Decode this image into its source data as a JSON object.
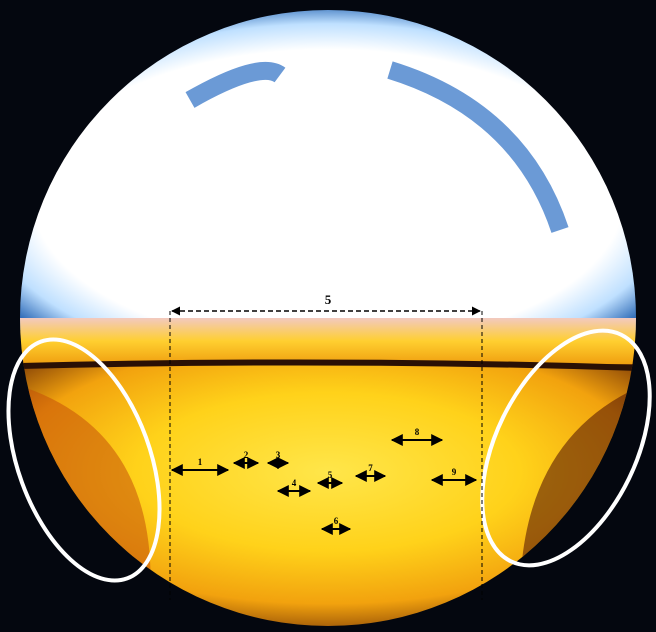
{
  "image": {
    "annotations": {
      "span_label": "5",
      "arrows": [
        {
          "label": "1"
        },
        {
          "label": "2"
        },
        {
          "label": "3"
        },
        {
          "label": "4"
        },
        {
          "label": "5"
        },
        {
          "label": "6"
        },
        {
          "label": "7"
        },
        {
          "label": "8"
        },
        {
          "label": "9"
        }
      ]
    }
  }
}
